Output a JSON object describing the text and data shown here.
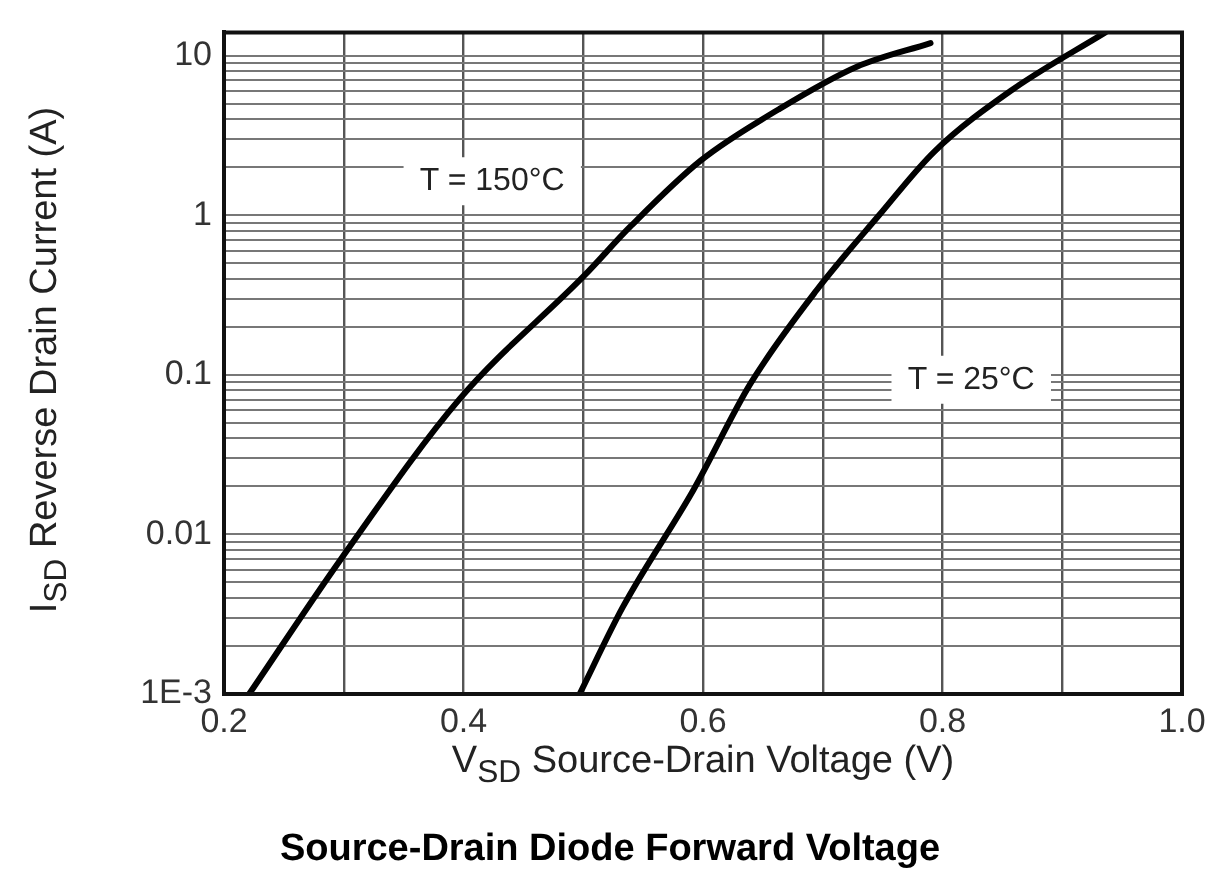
{
  "chart_data": {
    "type": "line",
    "title": "Source-Drain Diode Forward Voltage",
    "xlabel": "V$_{SD}$  Source-Drain Voltage (V)",
    "ylabel": "I$_{SD}$  Reverse Drain Current (A)",
    "log": "y",
    "grid": true,
    "marker": "none",
    "line_style": "solid",
    "xlim": [
      0.2,
      1.0
    ],
    "xticks": [
      0.2,
      {
        "value": 0.3,
        "label": null
      },
      0.4,
      {
        "value": 0.5,
        "label": null
      },
      0.6,
      {
        "value": 0.7,
        "label": null
      },
      0.8,
      {
        "value": 0.9,
        "label": null
      },
      {
        "value": 1.0,
        "label": "1.0"
      }
    ],
    "ylim": [
      0.001,
      14
    ],
    "yticks": [
      {
        "value": 0.001,
        "label": "1E-3"
      },
      {
        "value": 0.002,
        "label": null
      },
      {
        "value": 0.003,
        "label": null
      },
      {
        "value": 0.004,
        "label": null
      },
      {
        "value": 0.005,
        "label": null
      },
      {
        "value": 0.006,
        "label": null
      },
      {
        "value": 0.007,
        "label": null
      },
      {
        "value": 0.008,
        "label": null
      },
      {
        "value": 0.009,
        "label": null
      },
      0.01,
      {
        "value": 0.02,
        "label": null
      },
      {
        "value": 0.03,
        "label": null
      },
      {
        "value": 0.04,
        "label": null
      },
      {
        "value": 0.05,
        "label": null
      },
      {
        "value": 0.06,
        "label": null
      },
      {
        "value": 0.07,
        "label": null
      },
      {
        "value": 0.08,
        "label": null
      },
      {
        "value": 0.09,
        "label": null
      },
      0.1,
      {
        "value": 0.2,
        "label": null
      },
      {
        "value": 0.3,
        "label": null
      },
      {
        "value": 0.4,
        "label": null
      },
      {
        "value": 0.5,
        "label": null
      },
      {
        "value": 0.6,
        "label": null
      },
      {
        "value": 0.7,
        "label": null
      },
      {
        "value": 0.8,
        "label": null
      },
      {
        "value": 0.9,
        "label": null
      },
      1,
      {
        "value": 2,
        "label": null
      },
      {
        "value": 3,
        "label": null
      },
      {
        "value": 4,
        "label": null
      },
      {
        "value": 5,
        "label": null
      },
      {
        "value": 6,
        "label": null
      },
      {
        "value": 7,
        "label": null
      },
      {
        "value": 8,
        "label": null
      },
      {
        "value": 9,
        "label": null
      },
      10
    ],
    "series": [
      {
        "color": "#000000",
        "x": [
          0.221,
          0.297,
          0.397,
          0.501,
          0.54,
          0.598,
          0.663,
          0.728,
          0.79
        ],
        "values": [
          0.001,
          0.0069,
          0.071,
          0.42,
          0.86,
          2.2,
          4.6,
          8.5,
          12
        ]
      },
      {
        "color": "#000000",
        "x": [
          0.497,
          0.533,
          0.592,
          0.64,
          0.695,
          0.747,
          0.793,
          0.858,
          0.936
        ],
        "values": [
          0.001,
          0.0035,
          0.019,
          0.089,
          0.34,
          1.0,
          2.5,
          6.1,
          14
        ]
      }
    ],
    "annotations": [
      "T = 150°C",
      "T = 25°C"
    ]
  }
}
